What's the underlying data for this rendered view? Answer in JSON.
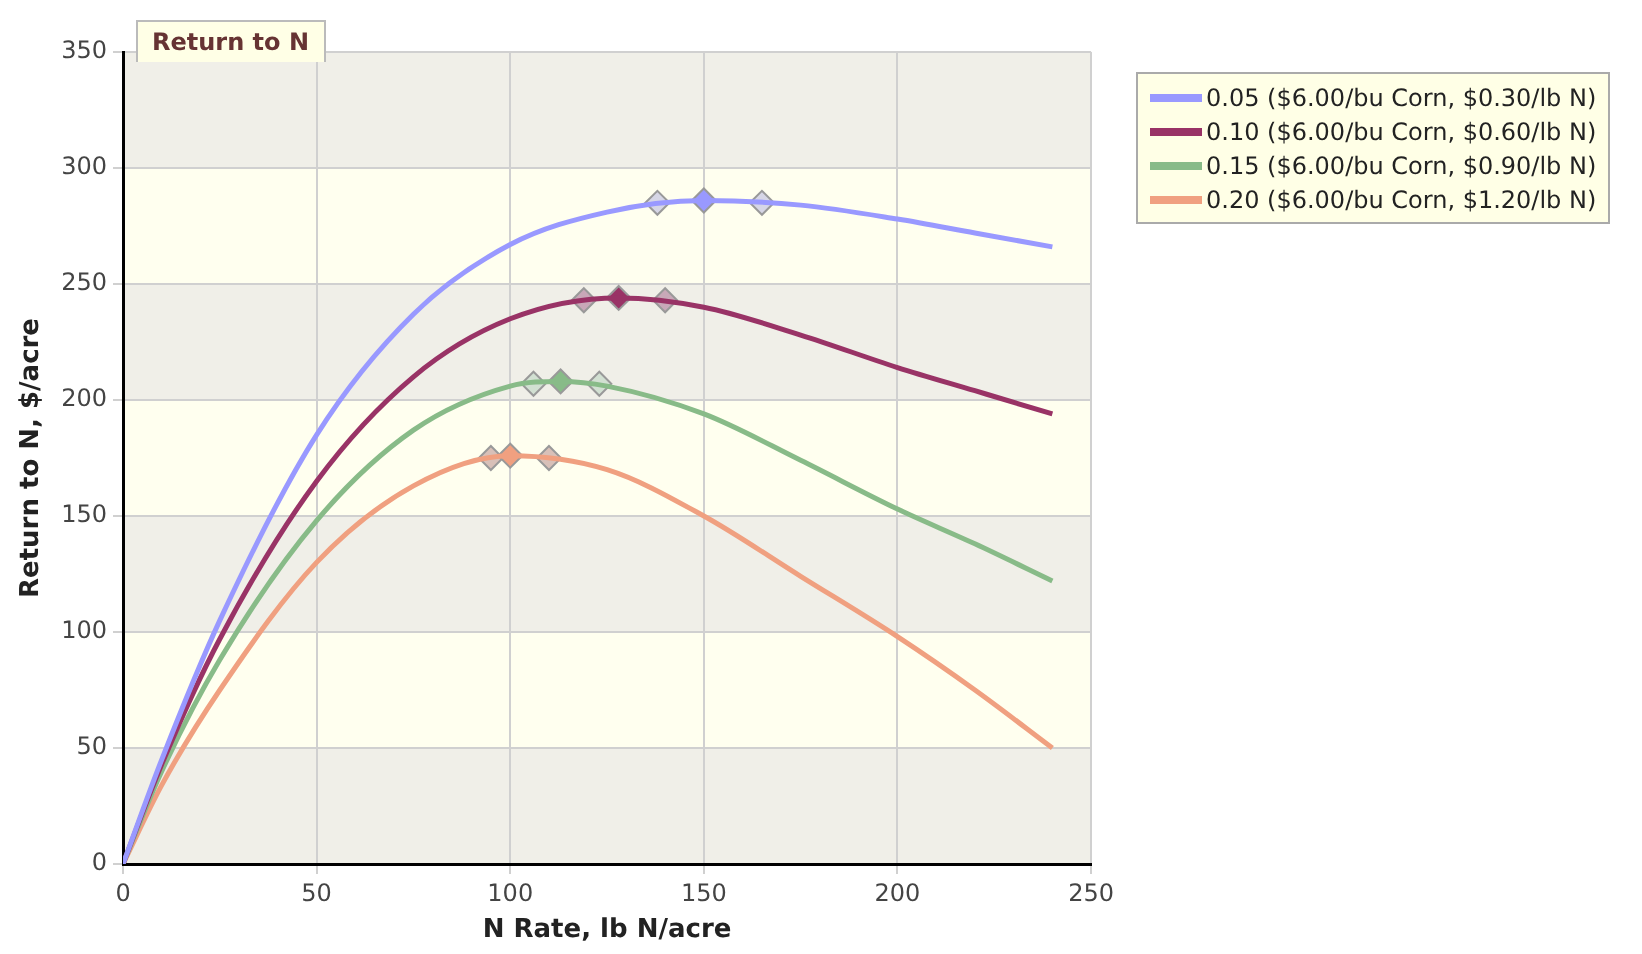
{
  "chart_data": {
    "type": "line",
    "title": "Return to N",
    "xlabel": "N Rate, lb N/acre",
    "ylabel": "Return to N, $/acre",
    "xlim": [
      0,
      250
    ],
    "xticks": [
      0,
      50,
      100,
      150,
      200,
      250
    ],
    "ylim": [
      0,
      350
    ],
    "yticks": [
      0,
      50,
      100,
      150,
      200,
      250,
      300,
      350
    ],
    "grid": true,
    "legend": "top right",
    "marker": "none",
    "line_style": "solid",
    "series": [
      {
        "name": "0.05 ($6.00/bu Corn, $0.30/lb N)",
        "color": "#9999ff",
        "x": [
          0,
          10,
          25,
          50,
          75,
          100,
          125,
          150,
          175,
          200,
          220,
          240
        ],
        "values": [
          0,
          45,
          105,
          185,
          237,
          267,
          281,
          286,
          284,
          278,
          272,
          266
        ]
      },
      {
        "name": "0.10 ($6.00/bu Corn, $0.60/lb N)",
        "color": "#993366",
        "x": [
          0,
          10,
          25,
          50,
          75,
          100,
          128,
          150,
          175,
          200,
          220,
          240
        ],
        "values": [
          0,
          43,
          97,
          165,
          210,
          235,
          244,
          240,
          228,
          214,
          204,
          194
        ]
      },
      {
        "name": "0.15 ($6.00/bu Corn, $0.90/lb N)",
        "color": "#88bb88",
        "x": [
          0,
          10,
          25,
          50,
          75,
          100,
          113,
          125,
          150,
          175,
          200,
          220,
          240
        ],
        "values": [
          0,
          40,
          88,
          148,
          187,
          206,
          208,
          206,
          194,
          174,
          153,
          138,
          122
        ]
      },
      {
        "name": "0.20 ($6.00/bu Corn, $1.20/lb N)",
        "color": "#f0a080",
        "x": [
          0,
          10,
          25,
          50,
          75,
          100,
          125,
          150,
          175,
          200,
          220,
          240
        ],
        "values": [
          0,
          34,
          75,
          130,
          163,
          176,
          170,
          150,
          124,
          98,
          75,
          50
        ]
      },
      {
        "type": "scatter",
        "marker": "diamond",
        "x": [
          138,
          150,
          165
        ],
        "values": [
          285,
          286,
          285
        ],
        "colors": [
          "#d6d6e6",
          "#9999ff",
          "#d6d6e6"
        ]
      },
      {
        "type": "scatter",
        "marker": "diamond",
        "x": [
          119,
          128,
          140
        ],
        "values": [
          243,
          244,
          243
        ],
        "colors": [
          "#c8a8b8",
          "#993366",
          "#c8a8b8"
        ]
      },
      {
        "type": "scatter",
        "marker": "diamond",
        "x": [
          106,
          113,
          123
        ],
        "values": [
          207,
          208,
          207
        ],
        "colors": [
          "#d2e0d2",
          "#88bb88",
          "#d2e0d2"
        ]
      },
      {
        "type": "scatter",
        "marker": "diamond",
        "x": [
          95,
          100,
          110
        ],
        "values": [
          175,
          176,
          175
        ],
        "colors": [
          "#d8c0b8",
          "#f0a080",
          "#d8c0b8"
        ]
      }
    ]
  }
}
